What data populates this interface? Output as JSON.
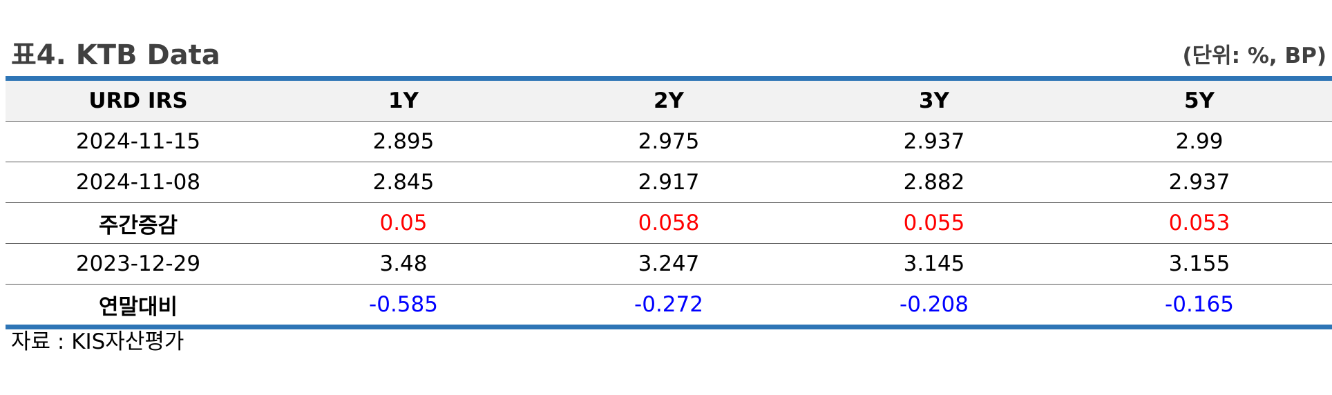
{
  "header": {
    "title": "표4. KTB Data",
    "unit": "(단위: %, BP)"
  },
  "table": {
    "columns": [
      "URD IRS",
      "1Y",
      "2Y",
      "3Y",
      "5Y"
    ],
    "rows": [
      {
        "label": "2024-11-15",
        "values": [
          "2.895",
          "2.975",
          "2.937",
          "2.99"
        ],
        "style": "normal"
      },
      {
        "label": "2024-11-08",
        "values": [
          "2.845",
          "2.917",
          "2.882",
          "2.937"
        ],
        "style": "normal"
      },
      {
        "label": "주간증감",
        "values": [
          "0.05",
          "0.058",
          "0.055",
          "0.053"
        ],
        "style": "red"
      },
      {
        "label": "2023-12-29",
        "values": [
          "3.48",
          "3.247",
          "3.145",
          "3.155"
        ],
        "style": "normal"
      },
      {
        "label": "연말대비",
        "values": [
          "-0.585",
          "-0.272",
          "-0.208",
          "-0.165"
        ],
        "style": "blue"
      }
    ]
  },
  "footer": {
    "source": "자료 : KIS자산평가"
  },
  "colors": {
    "rule": "#2e75b6",
    "header_bg": "#f2f2f2",
    "increase": "#ff0000",
    "decrease": "#0000ff"
  }
}
